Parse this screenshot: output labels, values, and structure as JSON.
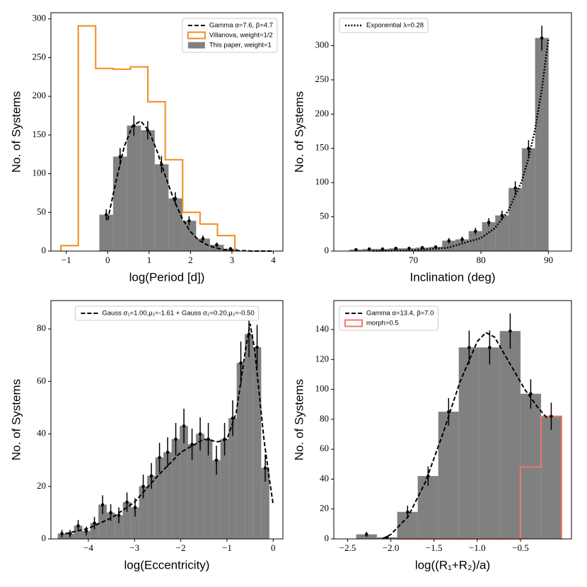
{
  "chart_data": [
    {
      "type": "histogram",
      "xlabel": "log(Period [d])",
      "ylabel": "No. of Systems",
      "xlim": [
        -1.37,
        4.23
      ],
      "ylim": [
        0,
        308
      ],
      "xticks": [
        {
          "value": -1,
          "label": "−1"
        },
        0,
        1,
        2,
        3,
        4
      ],
      "yticks": [
        0,
        50,
        100,
        150,
        200,
        250,
        300
      ],
      "legend": "upper right",
      "series": [
        {
          "name": "Gamma α=7.6, β=4.7",
          "style": "dashed",
          "color": "#000000",
          "x": [
            0,
            0.2,
            0.4,
            0.6,
            0.8,
            1.0,
            1.2,
            1.4,
            1.6,
            1.8,
            2.0,
            2.2,
            2.4,
            2.6,
            2.8,
            3.0,
            3.5,
            4.0
          ],
          "values": [
            40,
            90,
            135,
            162,
            168,
            155,
            128,
            96,
            66,
            42,
            25,
            14,
            8,
            4,
            2,
            1,
            0,
            0
          ]
        },
        {
          "name": "Villanova, weight=1/2",
          "style": "step",
          "color": "#f28c1c",
          "bins": [
            -1.13,
            -0.71,
            -0.29,
            0.13,
            0.55,
            0.97,
            1.39,
            1.81,
            2.23,
            2.65,
            3.07
          ],
          "values": [
            7,
            291,
            236,
            235,
            238,
            193,
            118,
            50,
            35,
            20
          ]
        },
        {
          "name": "This paper, weight=1",
          "style": "filled",
          "color": "#808080",
          "bins": [
            -0.2,
            0.133,
            0.467,
            0.8,
            1.133,
            1.467,
            1.8,
            2.133,
            2.467,
            2.8,
            3.133
          ],
          "values": [
            47,
            122,
            162,
            156,
            112,
            68,
            39,
            16,
            8,
            3
          ],
          "errors": [
            7,
            11,
            13,
            12,
            11,
            8,
            6,
            4,
            3,
            2
          ]
        }
      ]
    },
    {
      "type": "histogram",
      "xlabel": "Inclination (deg)",
      "ylabel": "No. of Systems",
      "xlim": [
        58.2,
        93.4
      ],
      "ylim": [
        0,
        348
      ],
      "xticks": [
        70,
        80,
        90
      ],
      "yticks": [
        0,
        50,
        100,
        150,
        200,
        250,
        300
      ],
      "legend": "upper left",
      "series": [
        {
          "name": "Exponential λ=0.28",
          "style": "dotted",
          "color": "#000000",
          "x": [
            64,
            70,
            75,
            80,
            82,
            84,
            86,
            87,
            88,
            89,
            90
          ],
          "values": [
            0.2,
            1.2,
            4.7,
            19,
            33,
            58,
            101,
            134,
            177,
            235,
            311
          ]
        },
        {
          "style": "filled",
          "color": "#808080",
          "bins": [
            60.5,
            62.47,
            64.43,
            66.4,
            68.37,
            70.33,
            72.3,
            74.27,
            76.23,
            78.2,
            80.17,
            82.13,
            84.1,
            86.07,
            88.03,
            90
          ],
          "values": [
            2,
            3,
            3,
            4,
            4,
            5,
            6,
            15,
            17,
            29,
            42,
            52,
            92,
            150,
            311
          ],
          "errors": [
            1,
            2,
            2,
            2,
            2,
            2,
            2,
            4,
            4,
            5,
            6,
            7,
            10,
            12,
            18
          ]
        }
      ]
    },
    {
      "type": "histogram",
      "xlabel": "log(Eccentricity)",
      "ylabel": "No. of Systems",
      "xlim": [
        -4.81,
        0.21
      ],
      "ylim": [
        0,
        90.8
      ],
      "xticks": [
        {
          "value": -4,
          "label": "−4"
        },
        {
          "value": -3,
          "label": "−3"
        },
        {
          "value": -2,
          "label": "−2"
        },
        {
          "value": -1,
          "label": "−1"
        },
        0
      ],
      "yticks": [
        0,
        20,
        40,
        60,
        80
      ],
      "legend": "upper center",
      "series": [
        {
          "name": "Gauss σ₁=1.00,μ₁=-1.61 + Gauss σ₂=0.20,μ₂=-0.50",
          "style": "dashed",
          "color": "#000000",
          "x": [
            -4.5,
            -4,
            -3.5,
            -3,
            -2.5,
            -2,
            -1.5,
            -1.2,
            -1,
            -0.8,
            -0.6,
            -0.5,
            -0.4,
            -0.2,
            -0.1,
            0
          ],
          "values": [
            2,
            4,
            8,
            14,
            24,
            33,
            38,
            37,
            38,
            48,
            72,
            82,
            72,
            38,
            25,
            13
          ]
        },
        {
          "style": "filled",
          "color": "#808080",
          "bins": [
            -4.66,
            -4.484,
            -4.308,
            -4.132,
            -3.956,
            -3.78,
            -3.604,
            -3.428,
            -3.252,
            -3.076,
            -2.9,
            -2.724,
            -2.548,
            -2.372,
            -2.196,
            -2.02,
            -1.844,
            -1.668,
            -1.492,
            -1.316,
            -1.14,
            -0.964,
            -0.788,
            -0.612,
            -0.436,
            -0.26,
            -0.084
          ],
          "values": [
            2,
            2,
            5,
            3,
            6,
            13,
            10,
            9,
            14,
            12,
            20,
            24,
            31,
            33,
            38,
            43,
            36,
            40,
            38,
            30,
            38,
            46,
            67,
            78,
            73,
            27
          ],
          "errors": [
            1.4,
            1.4,
            2.2,
            1.7,
            2.4,
            3.6,
            3.2,
            3,
            3.7,
            3.5,
            4.5,
            4.9,
            5.6,
            5.7,
            6.2,
            6.6,
            6,
            6.3,
            6.2,
            5.5,
            6.2,
            6.8,
            8.2,
            8.8,
            8.5,
            5.2
          ]
        }
      ]
    },
    {
      "type": "histogram",
      "xlabel": "log((R₁+R₂)/a)",
      "ylabel": "No. of Systems",
      "xlim": [
        -2.66,
        0.09
      ],
      "ylim": [
        0,
        159.4
      ],
      "xticks": [
        {
          "value": -2.5,
          "label": "−2.5"
        },
        {
          "value": -2,
          "label": "−2.0"
        },
        {
          "value": -1.5,
          "label": "−1.5"
        },
        {
          "value": -1,
          "label": "−1.0"
        },
        {
          "value": -0.5,
          "label": "−0.5"
        }
      ],
      "yticks": [
        0,
        20,
        40,
        60,
        80,
        100,
        120,
        140
      ],
      "legend": "upper left",
      "series": [
        {
          "name": "Gamma α=13.4, β=7.0",
          "style": "dashed",
          "color": "#000000",
          "x": [
            -2.1,
            -2.0,
            -1.8,
            -1.6,
            -1.4,
            -1.2,
            -1.0,
            -0.9,
            -0.8,
            -0.6,
            -0.45,
            -0.3,
            -0.18
          ],
          "values": [
            0,
            3,
            15,
            38,
            70,
            105,
            132,
            138,
            135,
            115,
            100,
            88,
            80
          ]
        },
        {
          "name": "morph>0.5",
          "style": "step",
          "color": "#f07868",
          "bins": [
            -1.925,
            -1.6875,
            -1.45,
            -1.2125,
            -0.975,
            -0.7375,
            -0.5,
            -0.2625,
            -0.025
          ],
          "values": [
            0,
            0,
            0,
            0,
            0,
            0,
            48,
            82
          ]
        },
        {
          "style": "filled",
          "color": "#808080",
          "bins": [
            -2.4,
            -2.1625,
            -1.925,
            -1.6875,
            -1.45,
            -1.2125,
            -0.975,
            -0.7375,
            -0.5,
            -0.2625,
            -0.025
          ],
          "values": [
            3,
            1,
            18,
            42,
            85,
            128,
            128,
            139,
            97,
            82
          ],
          "errors": [
            1.7,
            1,
            4.2,
            6.5,
            9.2,
            11.3,
            11.3,
            11.8,
            9.8,
            9.1
          ]
        }
      ]
    }
  ]
}
